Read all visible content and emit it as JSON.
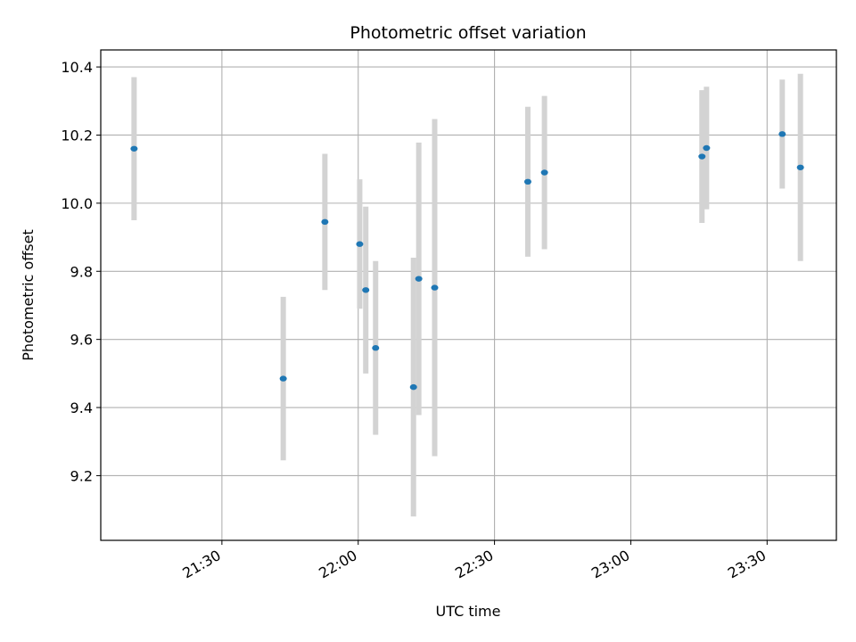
{
  "chart_data": {
    "type": "scatter",
    "title": "Photometric offset variation",
    "xlabel": "UTC time",
    "ylabel": "Photometric offset",
    "x_axis_type": "time",
    "xlim": [
      "21:03:20",
      "23:45:15"
    ],
    "ylim": [
      9.01,
      10.45
    ],
    "x_ticks": [
      "21:30",
      "22:00",
      "22:30",
      "23:00",
      "23:30"
    ],
    "y_ticks": [
      9.2,
      9.4,
      9.6,
      9.8,
      10.0,
      10.2,
      10.4
    ],
    "y_tick_labels": [
      "9.2",
      "9.4",
      "9.6",
      "9.8",
      "10.0",
      "10.2",
      "10.4"
    ],
    "grid": true,
    "series": [
      {
        "marker_color": "#1f77b4",
        "errorbar_color": "#d3d3d3",
        "points": [
          {
            "x": "21:10:40",
            "y": 10.16,
            "err": 0.21
          },
          {
            "x": "21:43:30",
            "y": 9.485,
            "err": 0.24
          },
          {
            "x": "21:52:40",
            "y": 9.945,
            "err": 0.2
          },
          {
            "x": "22:00:20",
            "y": 9.88,
            "err": 0.19
          },
          {
            "x": "22:01:40",
            "y": 9.745,
            "err": 0.245
          },
          {
            "x": "22:03:50",
            "y": 9.575,
            "err": 0.255
          },
          {
            "x": "22:12:10",
            "y": 9.46,
            "err": 0.38
          },
          {
            "x": "22:13:20",
            "y": 9.778,
            "err": 0.4
          },
          {
            "x": "22:16:50",
            "y": 9.752,
            "err": 0.495
          },
          {
            "x": "22:37:20",
            "y": 10.063,
            "err": 0.22
          },
          {
            "x": "22:41:00",
            "y": 10.09,
            "err": 0.225
          },
          {
            "x": "23:15:40",
            "y": 10.137,
            "err": 0.195
          },
          {
            "x": "23:16:40",
            "y": 10.162,
            "err": 0.18
          },
          {
            "x": "23:33:20",
            "y": 10.203,
            "err": 0.16
          },
          {
            "x": "23:37:20",
            "y": 10.105,
            "err": 0.275
          }
        ]
      }
    ]
  }
}
